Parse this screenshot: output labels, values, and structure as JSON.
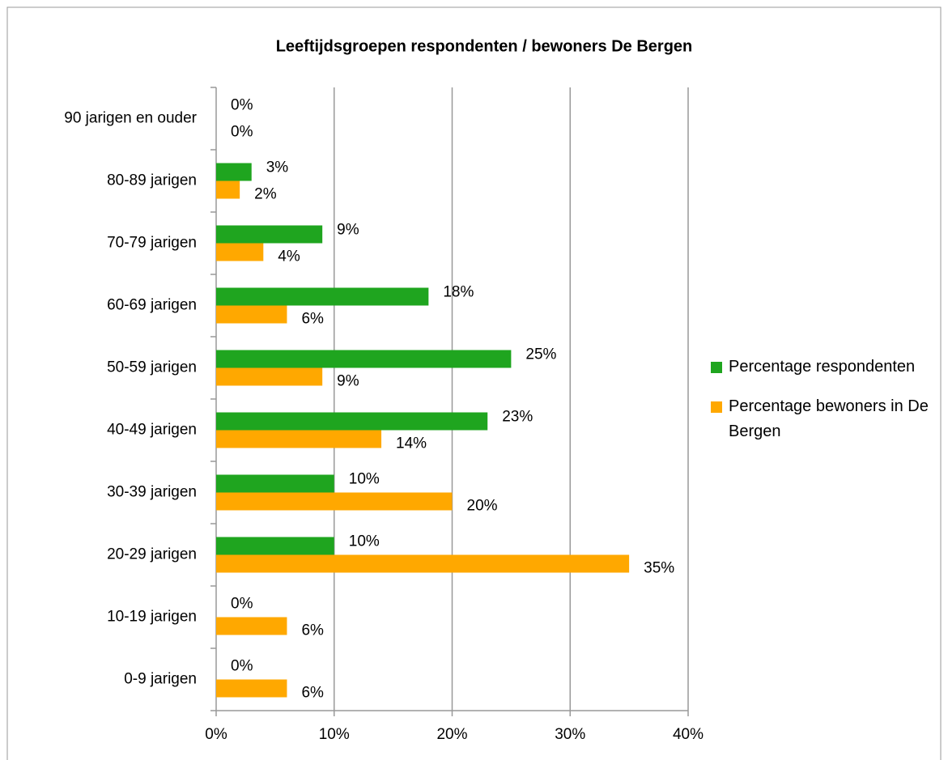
{
  "chart_data": {
    "type": "hbar",
    "title": "Leeftijdsgroepen respondenten / bewoners De Bergen",
    "categories": [
      "0-9 jarigen",
      "10-19 jarigen",
      "20-29 jarigen",
      "30-39 jarigen",
      "40-49 jarigen",
      "50-59 jarigen",
      "60-69 jarigen",
      "70-79 jarigen",
      "80-89 jarigen",
      "90 jarigen en ouder"
    ],
    "series": [
      {
        "name": "Percentage respondenten",
        "color": "#1fa51f",
        "values": [
          0,
          0,
          10,
          10,
          23,
          25,
          18,
          9,
          3,
          0
        ],
        "value_labels": [
          "0%",
          "0%",
          "10%",
          "10%",
          "23%",
          "25%",
          "18%",
          "9%",
          "3%",
          "0%"
        ]
      },
      {
        "name": "Percentage bewoners in De Bergen",
        "color": "#ffa800",
        "values": [
          6,
          6,
          35,
          20,
          14,
          9,
          6,
          4,
          2,
          0
        ],
        "value_labels": [
          "6%",
          "6%",
          "35%",
          "20%",
          "14%",
          "9%",
          "6%",
          "4%",
          "2%",
          "0%"
        ]
      }
    ],
    "xlim": [
      0,
      40
    ],
    "xticks": [
      {
        "value": 0,
        "label": "0%"
      },
      {
        "value": 10,
        "label": "10%"
      },
      {
        "value": 20,
        "label": "20%"
      },
      {
        "value": 30,
        "label": "30%"
      },
      {
        "value": 40,
        "label": "40%"
      }
    ],
    "grid": true,
    "legend": "right"
  }
}
